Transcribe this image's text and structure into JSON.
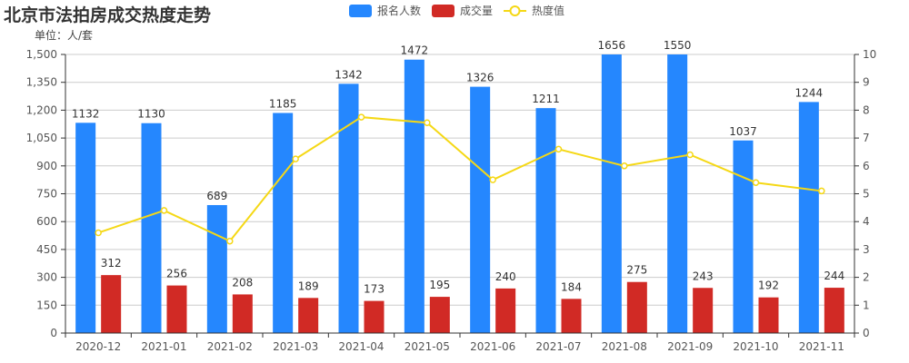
{
  "header": {
    "title": "北京市法拍房成交热度走势",
    "unit_label": "单位：人/套"
  },
  "legend": [
    {
      "label": "报名人数",
      "color": "#2587fe",
      "type": "bar"
    },
    {
      "label": "成交量",
      "color": "#d12a25",
      "type": "bar"
    },
    {
      "label": "热度值",
      "color": "#f5d815",
      "type": "line"
    }
  ],
  "chart_data": {
    "type": "bar",
    "title": "北京市法拍房成交热度走势",
    "subtitle": "单位：人/套",
    "categories": [
      "2020-12",
      "2021-01",
      "2021-02",
      "2021-03",
      "2021-04",
      "2021-05",
      "2021-06",
      "2021-07",
      "2021-08",
      "2021-09",
      "2021-10",
      "2021-11"
    ],
    "series": [
      {
        "name": "报名人数",
        "type": "bar",
        "axis": "left",
        "color": "#2587fe",
        "values": [
          1132,
          1130,
          689,
          1185,
          1342,
          1472,
          1326,
          1211,
          1656,
          1550,
          1037,
          1244
        ]
      },
      {
        "name": "成交量",
        "type": "bar",
        "axis": "left",
        "color": "#d12a25",
        "values": [
          312,
          256,
          208,
          189,
          173,
          195,
          240,
          184,
          275,
          243,
          192,
          244
        ]
      },
      {
        "name": "热度值",
        "type": "line",
        "axis": "right",
        "color": "#f5d815",
        "values": [
          3.6,
          4.4,
          3.3,
          6.25,
          7.75,
          7.55,
          5.5,
          6.6,
          6.0,
          6.4,
          5.4,
          5.1
        ]
      }
    ],
    "left_axis": {
      "ticks": [
        "0",
        "150",
        "300",
        "450",
        "600",
        "750",
        "900",
        "1,050",
        "1,200",
        "1,350",
        "1,500"
      ],
      "ylim": [
        0,
        1500
      ]
    },
    "right_axis": {
      "ticks": [
        "0",
        "1",
        "2",
        "3",
        "4",
        "5",
        "6",
        "7",
        "8",
        "9",
        "10"
      ],
      "ylim": [
        0,
        10
      ]
    },
    "xlabel": "",
    "ylabel": "",
    "grid": true,
    "legend_position": "top"
  }
}
